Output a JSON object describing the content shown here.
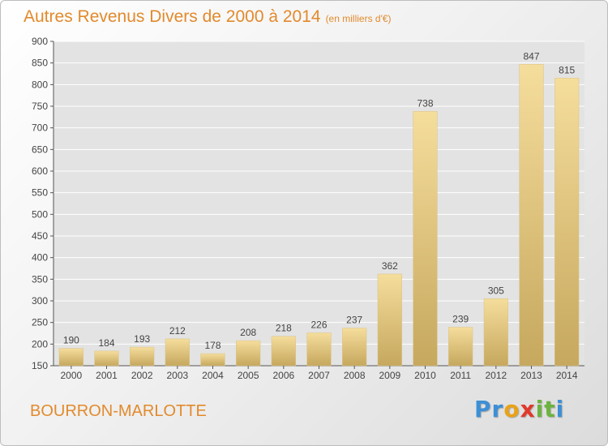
{
  "chart_data": {
    "type": "bar",
    "title": "Autres Revenus Divers de 2000 à 2014",
    "subtitle": "(en milliers d'€)",
    "categories": [
      "2000",
      "2001",
      "2002",
      "2003",
      "2004",
      "2005",
      "2006",
      "2007",
      "2008",
      "2009",
      "2010",
      "2011",
      "2012",
      "2013",
      "2014"
    ],
    "values": [
      190,
      184,
      193,
      212,
      178,
      208,
      218,
      226,
      237,
      362,
      738,
      239,
      305,
      847,
      815
    ],
    "ylim": [
      150,
      900
    ],
    "yticks": [
      "150",
      "200",
      "250",
      "300",
      "350",
      "400",
      "450",
      "500",
      "550",
      "600",
      "650",
      "700",
      "750",
      "800",
      "850",
      "900"
    ],
    "grid": true,
    "legend": "none",
    "bar_color_light": "#f5dd9c",
    "bar_color_dark": "#c6a85e"
  },
  "commune": "BOURRON-MARLOTTE",
  "logo": {
    "letters": [
      "P",
      "r",
      "o",
      "x",
      "i",
      "t",
      "i"
    ],
    "colors": [
      "#3d8fd6",
      "#3d8fd6",
      "#e8a21a",
      "#e0392b",
      "#6cb33f",
      "#6cb33f",
      "#3d8fd6"
    ]
  },
  "colors": {
    "title": "#e28a2c",
    "axis": "#555555",
    "grid": "#ffffff",
    "label": "#444444"
  }
}
